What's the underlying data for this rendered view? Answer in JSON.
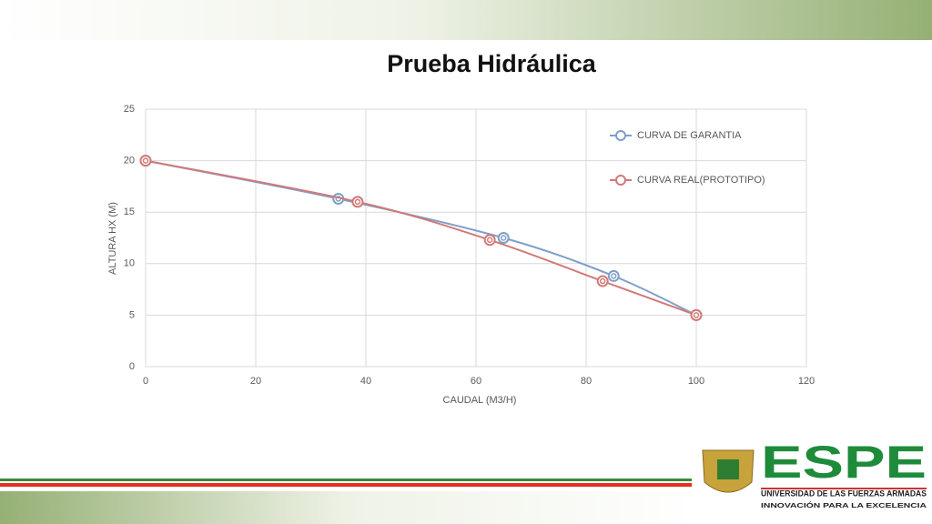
{
  "chart_data": {
    "type": "scatter",
    "title": "Prueba Hidráulica",
    "x_label": "CAUDAL (M3/H)",
    "y_label": "ALTURA HX (M)",
    "series": [
      {
        "name": "CURVA DE GARANTIA",
        "color": "#7f9fc8",
        "x": [
          0,
          35,
          65,
          85,
          100
        ],
        "values": [
          20,
          16.3,
          12.5,
          8.8,
          5
        ]
      },
      {
        "name": "CURVA REAL(PROTOTIPO)",
        "color": "#d07a78",
        "x": [
          0,
          38.5,
          62.5,
          83,
          100
        ],
        "values": [
          20,
          16,
          12.3,
          8.3,
          5
        ]
      }
    ],
    "xlim": [
      0,
      120
    ],
    "xticks": [
      0,
      20,
      40,
      60,
      80,
      100,
      120
    ],
    "ylim": [
      0,
      25
    ],
    "yticks": [
      0,
      5,
      10,
      15,
      20,
      25
    ],
    "grid": true,
    "legend": "upper right",
    "smooth": true
  },
  "logo": {
    "name": "ESPE",
    "subtitle": "UNIVERSIDAD DE LAS FUERZAS ARMADAS",
    "motto": "INNOVACIÓN PARA LA EXCELENCIA"
  }
}
